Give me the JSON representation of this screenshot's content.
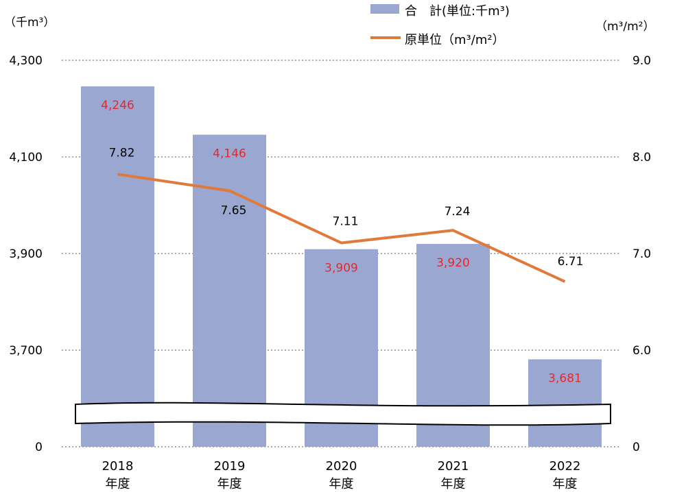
{
  "chart_data": {
    "type": "bar+line",
    "categories": [
      [
        "2018",
        "年度"
      ],
      [
        "2019",
        "年度"
      ],
      [
        "2020",
        "年度"
      ],
      [
        "2021",
        "年度"
      ],
      [
        "2022",
        "年度"
      ]
    ],
    "series": [
      {
        "name": "合　計(単位:千m³)",
        "type": "bar",
        "axis": "left",
        "values": [
          4246,
          4146,
          3909,
          3920,
          3681
        ],
        "labels": [
          "4,246",
          "4,146",
          "3,909",
          "3,920",
          "3,681"
        ],
        "color": "#9aa7d1",
        "label_color": "#e8262a"
      },
      {
        "name": "原単位（m³/m²）",
        "type": "line",
        "axis": "right",
        "values": [
          7.82,
          7.65,
          7.11,
          7.24,
          6.71
        ],
        "labels": [
          "7.82",
          "7.65",
          "7.11",
          "7.24",
          "6.71"
        ],
        "color": "#e07a3a",
        "label_color": "#000000"
      }
    ],
    "left_axis": {
      "unit_label": "（千m³）",
      "ticks": [
        3700,
        3900,
        4100,
        4300
      ],
      "tick_labels": [
        "3,700",
        "3,900",
        "4,100",
        "4,300"
      ],
      "zero_label": "0",
      "range": [
        3580,
        4300
      ],
      "broken": true
    },
    "right_axis": {
      "unit_label": "（m³/m²）",
      "ticks": [
        6.0,
        7.0,
        8.0,
        9.0
      ],
      "tick_labels": [
        "6.0",
        "7.0",
        "8.0",
        "9.0"
      ],
      "zero_label": "0",
      "range": [
        5.15,
        9.0
      ]
    },
    "grid": "dotted horizontal",
    "legend_position": "top-center"
  }
}
